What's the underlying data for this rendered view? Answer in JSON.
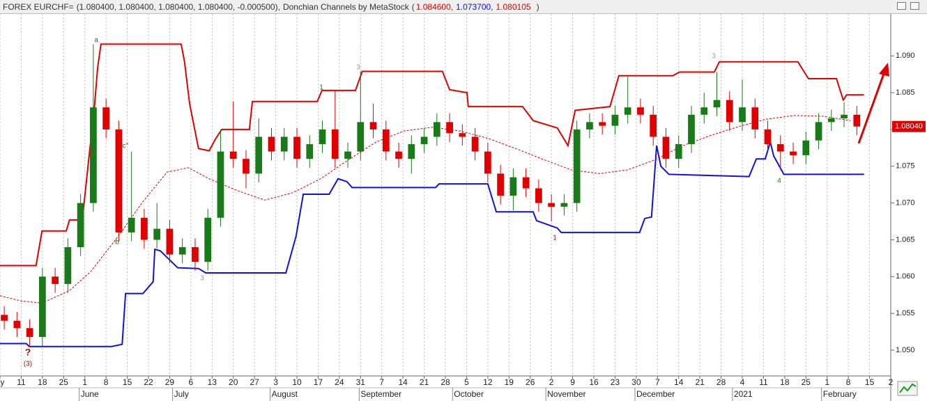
{
  "header": {
    "symbol": "FOREX EURCHF=",
    "quote": "(1.080400, 1.080400, 1.080400, 1.080400, -0.000500),",
    "indicator": "Donchian Channels by MetaStock",
    "open_paren": "(",
    "values": [
      {
        "text": "1.084600,",
        "color": "#e00000"
      },
      {
        "text": "1.073700,",
        "color": "#1010e0"
      },
      {
        "text": "1.080105",
        "color": "#e00000"
      }
    ],
    "close_paren": ")"
  },
  "chart_data": {
    "type": "candlestick",
    "x": [
      1,
      4,
      7,
      10,
      13,
      16,
      19,
      22,
      25,
      28,
      31,
      34,
      37,
      40,
      43,
      46,
      49,
      52,
      55,
      58,
      61,
      64,
      67,
      70,
      73,
      76,
      79,
      82,
      85,
      88,
      91,
      94,
      97,
      100,
      103,
      106,
      109,
      112,
      115,
      118,
      121,
      124,
      127,
      130,
      133,
      136,
      139,
      142,
      145,
      148,
      151,
      154,
      157,
      160,
      163,
      166,
      169,
      172,
      175,
      178,
      181,
      184,
      187,
      190,
      193,
      196,
      199,
      202
    ],
    "open": [
      1.0548,
      1.054,
      1.053,
      1.0518,
      1.06,
      1.059,
      1.064,
      1.07,
      1.083,
      1.08,
      1.066,
      1.068,
      1.065,
      1.0665,
      1.063,
      1.064,
      1.062,
      1.068,
      1.077,
      1.076,
      1.074,
      1.079,
      1.077,
      1.079,
      1.076,
      1.078,
      1.08,
      1.076,
      1.077,
      1.081,
      1.08,
      1.077,
      1.076,
      1.078,
      1.079,
      1.081,
      1.0795,
      1.079,
      1.077,
      1.074,
      1.071,
      1.0735,
      1.072,
      1.07,
      1.0695,
      1.07,
      1.08,
      1.081,
      1.0805,
      1.082,
      1.083,
      1.082,
      1.079,
      1.076,
      1.078,
      1.082,
      1.083,
      1.084,
      1.081,
      1.083,
      1.08,
      1.078,
      1.077,
      1.0765,
      1.0785,
      1.081,
      1.0815,
      1.082
    ],
    "high": [
      1.056,
      1.0552,
      1.0542,
      1.0612,
      1.0612,
      1.0652,
      1.0712,
      1.0916,
      1.0842,
      1.0812,
      1.077,
      1.0692,
      1.07,
      1.0677,
      1.0652,
      1.0652,
      1.0692,
      1.08,
      1.0838,
      1.0772,
      1.0815,
      1.0802,
      1.0802,
      1.0802,
      1.0792,
      1.0812,
      1.0853,
      1.0782,
      1.0879,
      1.0835,
      1.0812,
      1.0782,
      1.0792,
      1.0802,
      1.0822,
      1.0822,
      1.0807,
      1.0802,
      1.0782,
      1.0752,
      1.0747,
      1.0747,
      1.0732,
      1.0712,
      1.0712,
      1.0812,
      1.0822,
      1.0822,
      1.0832,
      1.0873,
      1.0842,
      1.0832,
      1.0802,
      1.0792,
      1.0832,
      1.085,
      1.0878,
      1.0852,
      1.0868,
      1.0842,
      1.0812,
      1.0792,
      1.0782,
      1.0797,
      1.0822,
      1.0827,
      1.0837,
      1.0832
    ],
    "low": [
      1.0528,
      1.0518,
      1.0505,
      1.0506,
      1.0578,
      1.0578,
      1.0628,
      1.0688,
      1.0788,
      1.0648,
      1.0648,
      1.0638,
      1.0638,
      1.0618,
      1.0618,
      1.0608,
      1.0608,
      1.0668,
      1.0748,
      1.072,
      1.0728,
      1.0758,
      1.0758,
      1.0748,
      1.0748,
      1.0768,
      1.0748,
      1.0748,
      1.0758,
      1.0788,
      1.0758,
      1.0748,
      1.074,
      1.0768,
      1.0778,
      1.0783,
      1.0778,
      1.0758,
      1.0728,
      1.0698,
      1.069,
      1.0708,
      1.0688,
      1.0675,
      1.0683,
      1.0688,
      1.0788,
      1.0793,
      1.0793,
      1.0808,
      1.0808,
      1.0778,
      1.0748,
      1.0748,
      1.0768,
      1.0808,
      1.0818,
      1.0798,
      1.0798,
      1.0788,
      1.0768,
      1.0745,
      1.0753,
      1.0753,
      1.0773,
      1.0798,
      1.0803,
      1.0792
    ],
    "close": [
      1.054,
      1.053,
      1.0518,
      1.06,
      1.059,
      1.064,
      1.07,
      1.083,
      1.08,
      1.066,
      1.068,
      1.065,
      1.0665,
      1.063,
      1.064,
      1.062,
      1.068,
      1.077,
      1.076,
      1.074,
      1.079,
      1.077,
      1.079,
      1.076,
      1.078,
      1.08,
      1.076,
      1.077,
      1.081,
      1.08,
      1.077,
      1.076,
      1.078,
      1.079,
      1.081,
      1.0795,
      1.079,
      1.077,
      1.074,
      1.071,
      1.0735,
      1.072,
      1.07,
      1.0695,
      1.07,
      1.08,
      1.081,
      1.0805,
      1.082,
      1.083,
      1.082,
      1.079,
      1.076,
      1.078,
      1.082,
      1.083,
      1.084,
      1.081,
      1.083,
      1.08,
      1.078,
      1.077,
      1.0765,
      1.0785,
      1.081,
      1.0815,
      1.082,
      1.0804
    ],
    "up_color": "#1a7a1a",
    "down_color": "#e00000",
    "channels": [
      {
        "color": "#e00000",
        "style": "solid",
        "x": [
          0,
          8.5,
          9.9,
          15.6,
          16.4,
          19.4,
          21,
          22.2,
          23,
          23.8,
          42.7,
          43.5,
          44.7,
          46.8,
          49.3,
          50.9,
          52.3,
          58.8,
          59.5,
          74.8,
          75.9,
          83.8,
          85.4,
          104.3,
          106,
          110.1,
          110.4,
          123.2,
          125.7,
          131.4,
          133.9,
          135.6,
          138.8,
          143.8,
          145.9,
          158.6,
          160.2,
          168.4,
          169.6,
          188.1,
          190.6,
          197.2,
          198.8,
          199.6,
          203.7
        ],
        "values": [
          1.0615,
          1.0615,
          1.0662,
          1.0662,
          1.0677,
          1.0677,
          1.0764,
          1.0826,
          1.0883,
          1.0916,
          1.0916,
          1.0892,
          1.0835,
          1.0774,
          1.0771,
          1.0788,
          1.08,
          1.08,
          1.0838,
          1.0838,
          1.0853,
          1.0853,
          1.0879,
          1.0879,
          1.0854,
          1.085,
          1.0831,
          1.0831,
          1.0812,
          1.0802,
          1.0778,
          1.0826,
          1.0828,
          1.0831,
          1.0873,
          1.0873,
          1.0878,
          1.0878,
          1.0892,
          1.0892,
          1.0869,
          1.0869,
          1.084,
          1.0847,
          1.0847
        ]
      },
      {
        "color": "#1010e0",
        "style": "solid",
        "x": [
          0,
          6.2,
          6.9,
          26.3,
          28.8,
          29.6,
          33.7,
          36.1,
          36.5,
          37.8,
          39.4,
          41.9,
          46.8,
          48.5,
          67.4,
          69.8,
          71.5,
          77.6,
          79.7,
          81.8,
          83,
          102.7,
          103.5,
          115,
          117,
          125.7,
          126.5,
          131.4,
          132.3,
          150.8,
          152,
          153.6,
          154.8,
          155.8,
          157.7,
          176.6,
          178.3,
          180.4,
          181.6,
          182.4,
          184.8,
          203.7
        ],
        "values": [
          1.0509,
          1.0509,
          1.0505,
          1.0505,
          1.0508,
          1.0577,
          1.0577,
          1.0593,
          1.0637,
          1.0635,
          1.0626,
          1.0612,
          1.0611,
          1.0605,
          1.0605,
          1.0655,
          1.0712,
          1.0712,
          1.0733,
          1.0729,
          1.0721,
          1.0721,
          1.0726,
          1.0726,
          1.0688,
          1.0688,
          1.0676,
          1.0666,
          1.066,
          1.066,
          1.0679,
          1.0681,
          1.0778,
          1.075,
          1.0739,
          1.0736,
          1.076,
          1.076,
          1.0783,
          1.0764,
          1.0739,
          1.0739
        ]
      },
      {
        "color": "#e00000",
        "style": "dashed",
        "x": [
          0,
          4.9,
          9.9,
          16.4,
          21.4,
          27.9,
          33.7,
          39.4,
          44.4,
          49.3,
          55.9,
          62.4,
          69,
          75.6,
          82.2,
          88.7,
          95.3,
          101.9,
          108.4,
          115,
          121.6,
          128.2,
          134.7,
          141.3,
          147.9,
          154.5,
          161,
          167.6,
          174.2,
          180.7,
          187.3,
          193.9,
          200.5
        ],
        "values": [
          1.0574,
          1.0567,
          1.0564,
          1.0581,
          1.0607,
          1.0655,
          1.0702,
          1.0742,
          1.0748,
          1.0733,
          1.0717,
          1.0704,
          1.0714,
          1.0733,
          1.0759,
          1.0783,
          1.0798,
          1.0803,
          1.0798,
          1.0788,
          1.0774,
          1.0759,
          1.0745,
          1.074,
          1.0745,
          1.0759,
          1.0778,
          1.0792,
          1.0804,
          1.0814,
          1.0819,
          1.0818,
          1.0812
        ]
      }
    ],
    "xlim": [
      0,
      210
    ],
    "xticks": [
      {
        "value": 0,
        "label": "ay"
      },
      {
        "value": 5,
        "label": "11"
      },
      {
        "value": 10,
        "label": "18"
      },
      {
        "value": 15,
        "label": "25"
      },
      {
        "value": 20,
        "label": "1"
      },
      {
        "value": 25,
        "label": "8"
      },
      {
        "value": 30,
        "label": "15"
      },
      {
        "value": 35,
        "label": "22"
      },
      {
        "value": 40,
        "label": "29"
      },
      {
        "value": 45,
        "label": "6"
      },
      {
        "value": 50,
        "label": "13"
      },
      {
        "value": 55,
        "label": "20"
      },
      {
        "value": 60,
        "label": "27"
      },
      {
        "value": 65,
        "label": "3"
      },
      {
        "value": 70,
        "label": "10"
      },
      {
        "value": 75,
        "label": "17"
      },
      {
        "value": 80,
        "label": "24"
      },
      {
        "value": 85,
        "label": "31"
      },
      {
        "value": 90,
        "label": "7"
      },
      {
        "value": 95,
        "label": "14"
      },
      {
        "value": 100,
        "label": "21"
      },
      {
        "value": 105,
        "label": "28"
      },
      {
        "value": 110,
        "label": "5"
      },
      {
        "value": 115,
        "label": "12"
      },
      {
        "value": 120,
        "label": "19"
      },
      {
        "value": 125,
        "label": "26"
      },
      {
        "value": 130,
        "label": "2"
      },
      {
        "value": 135,
        "label": "9"
      },
      {
        "value": 140,
        "label": "16"
      },
      {
        "value": 145,
        "label": "23"
      },
      {
        "value": 150,
        "label": "30"
      },
      {
        "value": 155,
        "label": "7"
      },
      {
        "value": 160,
        "label": "14"
      },
      {
        "value": 165,
        "label": "21"
      },
      {
        "value": 170,
        "label": "28"
      },
      {
        "value": 175,
        "label": "4"
      },
      {
        "value": 180,
        "label": "11"
      },
      {
        "value": 185,
        "label": "18"
      },
      {
        "value": 190,
        "label": "25"
      },
      {
        "value": 195,
        "label": "1"
      },
      {
        "value": 200,
        "label": "8"
      },
      {
        "value": 205,
        "label": "15"
      },
      {
        "value": 210,
        "label": "2"
      }
    ],
    "month_labels": [
      {
        "value": 20,
        "label": "June"
      },
      {
        "value": 42,
        "label": "July"
      },
      {
        "value": 65,
        "label": "August"
      },
      {
        "value": 86,
        "label": "September"
      },
      {
        "value": 108,
        "label": "October"
      },
      {
        "value": 130,
        "label": "November"
      },
      {
        "value": 151,
        "label": "December"
      },
      {
        "value": 174,
        "label": "2021"
      },
      {
        "value": 195,
        "label": "February"
      }
    ],
    "ylim": [
      1.0465,
      1.0957
    ],
    "yticks": [
      {
        "value": 1.05,
        "label": "1.050"
      },
      {
        "value": 1.055,
        "label": "1.055"
      },
      {
        "value": 1.06,
        "label": "1.060"
      },
      {
        "value": 1.065,
        "label": "1.065"
      },
      {
        "value": 1.07,
        "label": "1.070"
      },
      {
        "value": 1.075,
        "label": "1.075"
      },
      {
        "value": 1.08,
        "label": "1.080"
      },
      {
        "value": 1.085,
        "label": "1.085"
      },
      {
        "value": 1.09,
        "label": "1.090"
      }
    ],
    "last_price": {
      "value": 1.0804,
      "label": "1.08040",
      "color": "#e00000"
    },
    "grid": "vertical",
    "annotations": [
      "a",
      "b",
      "c°",
      "3",
      "1",
      "3",
      "1",
      "3",
      "4",
      "?",
      "(3)"
    ]
  }
}
